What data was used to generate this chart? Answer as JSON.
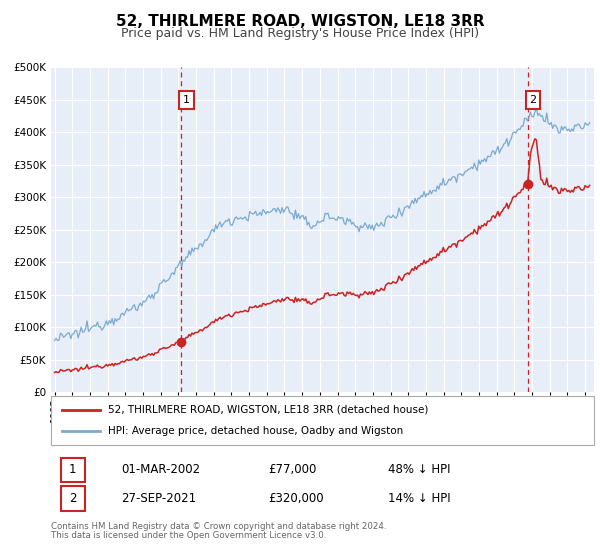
{
  "title": "52, THIRLMERE ROAD, WIGSTON, LE18 3RR",
  "subtitle": "Price paid vs. HM Land Registry's House Price Index (HPI)",
  "title_fontsize": 11,
  "subtitle_fontsize": 9,
  "background_color": "#ffffff",
  "plot_bg_color": "#e8eef8",
  "grid_color": "#ffffff",
  "hpi_color": "#7aaad0",
  "price_color": "#cc2222",
  "vline_color": "#cc2222",
  "transaction1": {
    "date_num": 2002.17,
    "price": 77000,
    "label": "1",
    "date_str": "01-MAR-2002",
    "pct": "48% ↓ HPI"
  },
  "transaction2": {
    "date_num": 2021.75,
    "price": 320000,
    "label": "2",
    "date_str": "27-SEP-2021",
    "pct": "14% ↓ HPI"
  },
  "xmin": 1994.8,
  "xmax": 2025.5,
  "ymin": 0,
  "ymax": 500000,
  "yticks": [
    0,
    50000,
    100000,
    150000,
    200000,
    250000,
    300000,
    350000,
    400000,
    450000,
    500000
  ],
  "legend_label_price": "52, THIRLMERE ROAD, WIGSTON, LE18 3RR (detached house)",
  "legend_label_hpi": "HPI: Average price, detached house, Oadby and Wigston",
  "footer1": "Contains HM Land Registry data © Crown copyright and database right 2024.",
  "footer2": "This data is licensed under the Open Government Licence v3.0."
}
